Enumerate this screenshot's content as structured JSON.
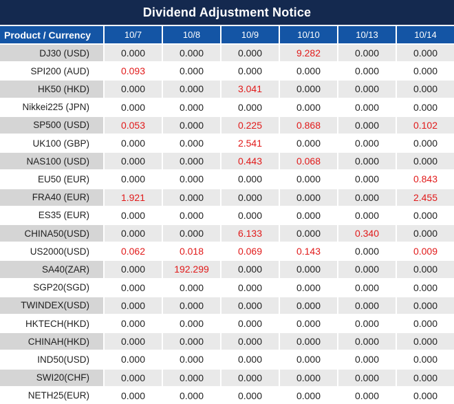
{
  "title": "Dividend Adjustment Notice",
  "colors": {
    "title_bg": "#14294F",
    "header_bg": "#1455A5",
    "grid_line": "#FFFFFF",
    "row_alt_product_bg": "#D5D5D5",
    "row_alt_data_bg": "#E9E9E9",
    "row_bg": "#FFFFFF",
    "text_dark": "#1F1F1F",
    "text_light": "#FFFFFF",
    "nonzero_red": "#E11919"
  },
  "table": {
    "product_header": "Product / Currency",
    "date_headers": [
      "10/7",
      "10/8",
      "10/9",
      "10/10",
      "10/13",
      "10/14"
    ],
    "rows": [
      {
        "product": "DJ30 (USD)",
        "values": [
          "0.000",
          "0.000",
          "0.000",
          "9.282",
          "0.000",
          "0.000"
        ]
      },
      {
        "product": "SPI200 (AUD)",
        "values": [
          "0.093",
          "0.000",
          "0.000",
          "0.000",
          "0.000",
          "0.000"
        ]
      },
      {
        "product": "HK50 (HKD)",
        "values": [
          "0.000",
          "0.000",
          "3.041",
          "0.000",
          "0.000",
          "0.000"
        ]
      },
      {
        "product": "Nikkei225 (JPN)",
        "values": [
          "0.000",
          "0.000",
          "0.000",
          "0.000",
          "0.000",
          "0.000"
        ]
      },
      {
        "product": "SP500 (USD)",
        "values": [
          "0.053",
          "0.000",
          "0.225",
          "0.868",
          "0.000",
          "0.102"
        ]
      },
      {
        "product": "UK100 (GBP)",
        "values": [
          "0.000",
          "0.000",
          "2.541",
          "0.000",
          "0.000",
          "0.000"
        ]
      },
      {
        "product": "NAS100 (USD)",
        "values": [
          "0.000",
          "0.000",
          "0.443",
          "0.068",
          "0.000",
          "0.000"
        ]
      },
      {
        "product": "EU50 (EUR)",
        "values": [
          "0.000",
          "0.000",
          "0.000",
          "0.000",
          "0.000",
          "0.843"
        ]
      },
      {
        "product": "FRA40 (EUR)",
        "values": [
          "1.921",
          "0.000",
          "0.000",
          "0.000",
          "0.000",
          "2.455"
        ]
      },
      {
        "product": "ES35 (EUR)",
        "values": [
          "0.000",
          "0.000",
          "0.000",
          "0.000",
          "0.000",
          "0.000"
        ]
      },
      {
        "product": "CHINA50(USD)",
        "values": [
          "0.000",
          "0.000",
          "6.133",
          "0.000",
          "0.340",
          "0.000"
        ]
      },
      {
        "product": "US2000(USD)",
        "values": [
          "0.062",
          "0.018",
          "0.069",
          "0.143",
          "0.000",
          "0.009"
        ]
      },
      {
        "product": "SA40(ZAR)",
        "values": [
          "0.000",
          "192.299",
          "0.000",
          "0.000",
          "0.000",
          "0.000"
        ]
      },
      {
        "product": "SGP20(SGD)",
        "values": [
          "0.000",
          "0.000",
          "0.000",
          "0.000",
          "0.000",
          "0.000"
        ]
      },
      {
        "product": "TWINDEX(USD)",
        "values": [
          "0.000",
          "0.000",
          "0.000",
          "0.000",
          "0.000",
          "0.000"
        ]
      },
      {
        "product": "HKTECH(HKD)",
        "values": [
          "0.000",
          "0.000",
          "0.000",
          "0.000",
          "0.000",
          "0.000"
        ]
      },
      {
        "product": "CHINAH(HKD)",
        "values": [
          "0.000",
          "0.000",
          "0.000",
          "0.000",
          "0.000",
          "0.000"
        ]
      },
      {
        "product": "IND50(USD)",
        "values": [
          "0.000",
          "0.000",
          "0.000",
          "0.000",
          "0.000",
          "0.000"
        ]
      },
      {
        "product": "SWI20(CHF)",
        "values": [
          "0.000",
          "0.000",
          "0.000",
          "0.000",
          "0.000",
          "0.000"
        ]
      },
      {
        "product": "NETH25(EUR)",
        "values": [
          "0.000",
          "0.000",
          "0.000",
          "0.000",
          "0.000",
          "0.000"
        ]
      }
    ]
  }
}
